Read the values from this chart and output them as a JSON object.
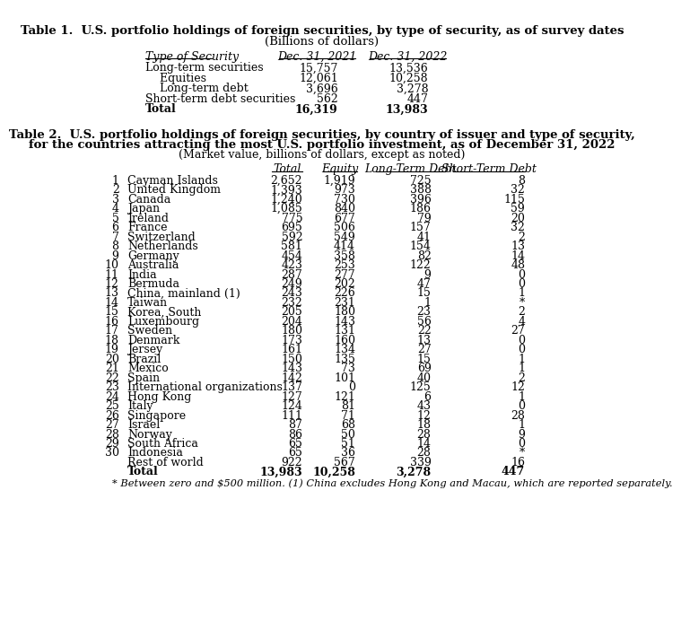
{
  "table1_title": "Table 1.  U.S. portfolio holdings of foreign securities, by type of security, as of survey dates",
  "table1_subtitle": "(Billions of dollars)",
  "table1_col_headers": [
    "Type of Security",
    "Dec. 31, 2021",
    "Dec. 31, 2022"
  ],
  "table1_rows": [
    [
      "Long-term securities",
      "15,757",
      "13,536"
    ],
    [
      "    Equities",
      "12,061",
      "10,258"
    ],
    [
      "    Long-term debt",
      "3,696",
      "3,278"
    ],
    [
      "Short-term debt securities",
      "562",
      "447"
    ],
    [
      "Total",
      "16,319",
      "13,983"
    ]
  ],
  "table1_bold_rows": [
    4
  ],
  "table2_title": "Table 2.  U.S. portfolio holdings of foreign securities, by country of issuer and type of security,",
  "table2_title2": "for the countries attracting the most U.S. portfolio investment, as of December 31, 2022",
  "table2_subtitle": "(Market value, billions of dollars, except as noted)",
  "table2_rows": [
    [
      "1",
      "Cayman Islands",
      "2,652",
      "1,919",
      "725",
      "8"
    ],
    [
      "2",
      "United Kingdom",
      "1,393",
      "973",
      "388",
      "32"
    ],
    [
      "3",
      "Canada",
      "1,240",
      "730",
      "396",
      "115"
    ],
    [
      "4",
      "Japan",
      "1,085",
      "840",
      "186",
      "59"
    ],
    [
      "5",
      "Ireland",
      "775",
      "677",
      "79",
      "20"
    ],
    [
      "6",
      "France",
      "695",
      "506",
      "157",
      "32"
    ],
    [
      "7",
      "Switzerland",
      "592",
      "549",
      "41",
      "2"
    ],
    [
      "8",
      "Netherlands",
      "581",
      "414",
      "154",
      "13"
    ],
    [
      "9",
      "Germany",
      "454",
      "358",
      "82",
      "14"
    ],
    [
      "10",
      "Australia",
      "423",
      "253",
      "122",
      "48"
    ],
    [
      "11",
      "India",
      "287",
      "277",
      "9",
      "0"
    ],
    [
      "12",
      "Bermuda",
      "249",
      "202",
      "47",
      "0"
    ],
    [
      "13",
      "China, mainland (1)",
      "243",
      "226",
      "15",
      "1"
    ],
    [
      "14",
      "Taiwan",
      "232",
      "231",
      "1",
      "*"
    ],
    [
      "15",
      "Korea, South",
      "205",
      "180",
      "23",
      "2"
    ],
    [
      "16",
      "Luxembourg",
      "204",
      "143",
      "56",
      "4"
    ],
    [
      "17",
      "Sweden",
      "180",
      "131",
      "22",
      "27"
    ],
    [
      "18",
      "Denmark",
      "173",
      "160",
      "13",
      "0"
    ],
    [
      "19",
      "Jersey",
      "161",
      "134",
      "27",
      "0"
    ],
    [
      "20",
      "Brazil",
      "150",
      "135",
      "15",
      "1"
    ],
    [
      "21",
      "Mexico",
      "143",
      "73",
      "69",
      "1"
    ],
    [
      "22",
      "Spain",
      "142",
      "101",
      "40",
      "2"
    ],
    [
      "23",
      "International organizations",
      "137",
      "0",
      "125",
      "12"
    ],
    [
      "24",
      "Hong Kong",
      "127",
      "121",
      "6",
      "1"
    ],
    [
      "25",
      "Italy",
      "124",
      "81",
      "43",
      "0"
    ],
    [
      "26",
      "Singapore",
      "111",
      "71",
      "12",
      "28"
    ],
    [
      "27",
      "Israel",
      "87",
      "68",
      "18",
      "1"
    ],
    [
      "28",
      "Norway",
      "86",
      "50",
      "28",
      "9"
    ],
    [
      "29",
      "South Africa",
      "65",
      "51",
      "14",
      "0"
    ],
    [
      "30",
      "Indonesia",
      "65",
      "36",
      "28",
      "*"
    ],
    [
      "",
      "Rest of world",
      "922",
      "567",
      "339",
      "16"
    ],
    [
      "",
      "Total",
      "13,983",
      "10,258",
      "3,278",
      "447"
    ]
  ],
  "table2_bold_rows": [
    31
  ],
  "footnote": "* Between zero and $500 million. (1) China excludes Hong Kong and Macau, which are reported separately."
}
